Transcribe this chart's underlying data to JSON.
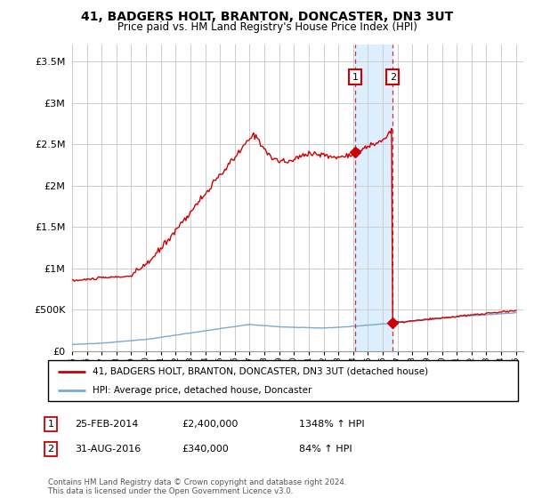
{
  "title": "41, BADGERS HOLT, BRANTON, DONCASTER, DN3 3UT",
  "subtitle": "Price paid vs. HM Land Registry's House Price Index (HPI)",
  "legend_label_red": "41, BADGERS HOLT, BRANTON, DONCASTER, DN3 3UT (detached house)",
  "legend_label_blue": "HPI: Average price, detached house, Doncaster",
  "sale1_label": "1",
  "sale1_date": "25-FEB-2014",
  "sale1_price": "£2,400,000",
  "sale1_hpi": "1348% ↑ HPI",
  "sale1_year": 2014.15,
  "sale1_value": 2400000,
  "sale2_label": "2",
  "sale2_date": "31-AUG-2016",
  "sale2_price": "£340,000",
  "sale2_hpi": "84% ↑ HPI",
  "sale2_year": 2016.67,
  "sale2_value": 340000,
  "footer": "Contains HM Land Registry data © Crown copyright and database right 2024.\nThis data is licensed under the Open Government Licence v3.0.",
  "xlim": [
    1995,
    2025.5
  ],
  "ylim": [
    0,
    3700000
  ],
  "yticks": [
    0,
    500000,
    1000000,
    1500000,
    2000000,
    2500000,
    3000000,
    3500000
  ],
  "ytick_labels": [
    "£0",
    "£500K",
    "£1M",
    "£1.5M",
    "£2M",
    "£2.5M",
    "£3M",
    "£3.5M"
  ],
  "xticks": [
    1995,
    1996,
    1997,
    1998,
    1999,
    2000,
    2001,
    2002,
    2003,
    2004,
    2005,
    2006,
    2007,
    2008,
    2009,
    2010,
    2011,
    2012,
    2013,
    2014,
    2015,
    2016,
    2017,
    2018,
    2019,
    2020,
    2021,
    2022,
    2023,
    2024,
    2025
  ],
  "red_color": "#cc0000",
  "blue_color": "#7aaad0",
  "shade_color": "#ddeeff",
  "marker_box_color": "#cc0000",
  "grid_color": "#cccccc",
  "background_color": "#ffffff"
}
